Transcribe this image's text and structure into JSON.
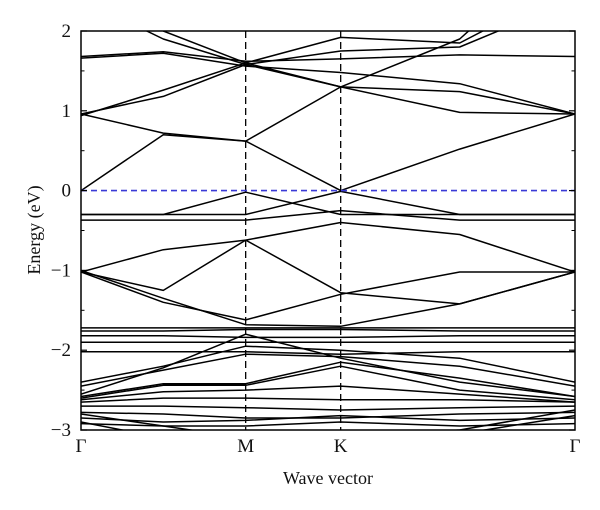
{
  "chart_data": {
    "type": "line",
    "title": "",
    "xlabel": "Wave vector",
    "ylabel": "Energy (eV)",
    "ylim": [
      -3,
      2
    ],
    "xlim": [
      0,
      3
    ],
    "grid": false,
    "legend": "none",
    "x_ticks": [
      {
        "value": 0,
        "label": "Γ"
      },
      {
        "value": 1,
        "label": "M"
      },
      {
        "value": 1.577,
        "label": "K"
      },
      {
        "value": 3,
        "label": "Γ"
      }
    ],
    "y_ticks": [
      {
        "value": 2,
        "label": "2"
      },
      {
        "value": 1,
        "label": "1"
      },
      {
        "value": 0,
        "label": "0"
      },
      {
        "value": -1,
        "label": "−1"
      },
      {
        "value": -2,
        "label": "−2"
      },
      {
        "value": -3,
        "label": "−3"
      }
    ],
    "high_symmetry_lines": [
      1,
      1.577
    ],
    "fermi_level": {
      "value": 0,
      "color": "#3a3ad6"
    },
    "band_color": "#000000",
    "x": [
      0,
      0.5,
      1,
      1.577,
      2.3,
      3
    ],
    "series": [
      {
        "values": [
          2.6,
          2.0,
          1.6,
          1.92,
          1.85,
          2.6
        ]
      },
      {
        "values": [
          2.4,
          1.9,
          1.58,
          1.75,
          1.8,
          2.4
        ]
      },
      {
        "values": [
          1.68,
          1.74,
          1.62,
          1.65,
          1.7,
          1.68
        ]
      },
      {
        "values": [
          1.66,
          1.72,
          1.56,
          1.48,
          1.34,
          0.96
        ]
      },
      {
        "values": [
          0.96,
          1.18,
          1.58,
          1.3,
          1.24,
          0.96
        ]
      },
      {
        "values": [
          0.94,
          1.26,
          1.6,
          1.3,
          0.98,
          0.96
        ]
      },
      {
        "values": [
          0.96,
          0.72,
          0.62,
          0.0,
          0.52,
          0.96
        ]
      },
      {
        "values": [
          0.0,
          0.7,
          0.62,
          1.3,
          1.9,
          3.2
        ]
      },
      {
        "values": [
          -0.3,
          -0.3,
          -0.3,
          -0.01,
          -0.3,
          -0.3
        ]
      },
      {
        "values": [
          -0.3,
          -0.3,
          -0.02,
          -0.3,
          -0.3,
          -0.3
        ]
      },
      {
        "values": [
          -0.37,
          -0.37,
          -0.37,
          -0.25,
          -0.37,
          -0.37
        ]
      },
      {
        "values": [
          -1.02,
          -0.74,
          -0.62,
          -0.4,
          -0.55,
          -1.02
        ]
      },
      {
        "values": [
          -1.02,
          -1.25,
          -0.62,
          -1.28,
          -1.42,
          -1.02
        ]
      },
      {
        "values": [
          -1.02,
          -1.4,
          -1.62,
          -1.3,
          -1.02,
          -1.02
        ]
      },
      {
        "values": [
          -1.0,
          -1.35,
          -1.68,
          -1.7,
          -1.42,
          -1.02
        ]
      },
      {
        "values": [
          -1.72,
          -1.72,
          -1.72,
          -1.72,
          -1.72,
          -1.72
        ]
      },
      {
        "values": [
          -1.76,
          -1.76,
          -1.74,
          -1.74,
          -1.76,
          -1.76
        ]
      },
      {
        "values": [
          -1.82,
          -1.82,
          -1.84,
          -1.84,
          -1.82,
          -1.82
        ]
      },
      {
        "values": [
          -1.9,
          -1.9,
          -1.9,
          -1.9,
          -1.9,
          -1.9
        ]
      },
      {
        "values": [
          -2.02,
          -2.02,
          -2.02,
          -2.05,
          -2.02,
          -2.02
        ]
      },
      {
        "values": [
          -2.4,
          -2.2,
          -1.95,
          -2.0,
          -2.1,
          -2.4
        ]
      },
      {
        "values": [
          -2.45,
          -2.25,
          -2.05,
          -2.08,
          -2.2,
          -2.45
        ]
      },
      {
        "values": [
          -2.55,
          -2.22,
          -1.8,
          -2.1,
          -2.4,
          -2.58
        ]
      },
      {
        "values": [
          -2.58,
          -2.42,
          -2.42,
          -2.15,
          -2.35,
          -2.58
        ]
      },
      {
        "values": [
          -2.6,
          -2.44,
          -2.44,
          -2.2,
          -2.5,
          -2.62
        ]
      },
      {
        "values": [
          -2.62,
          -2.52,
          -2.5,
          -2.45,
          -2.55,
          -2.65
        ]
      },
      {
        "values": [
          -2.65,
          -2.6,
          -2.6,
          -2.62,
          -2.62,
          -2.65
        ]
      },
      {
        "values": [
          -2.7,
          -2.7,
          -2.72,
          -2.75,
          -2.72,
          -2.7
        ]
      },
      {
        "values": [
          -2.78,
          -2.8,
          -2.85,
          -2.85,
          -2.8,
          -2.78
        ]
      },
      {
        "values": [
          -2.85,
          -2.9,
          -2.88,
          -2.82,
          -2.88,
          -2.85
        ]
      },
      {
        "values": [
          -2.92,
          -2.95,
          -2.95,
          -2.9,
          -2.95,
          -2.92
        ]
      },
      {
        "values": [
          -2.8,
          -2.95,
          -3.1,
          -3.1,
          -3.0,
          -2.75
        ]
      },
      {
        "values": [
          -2.9,
          -3.1,
          -3.2,
          -3.2,
          -3.05,
          -2.82
        ]
      }
    ]
  }
}
